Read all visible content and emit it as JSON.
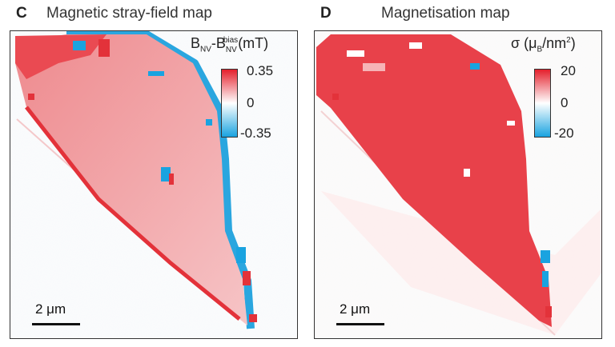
{
  "panels": [
    {
      "letter": "C",
      "title": "Magnetic stray-field map",
      "colorbar": {
        "label_main": "B",
        "label_sub1": "NV",
        "label_dash": "-B",
        "label_sup": "bias",
        "label_sub2": "NV",
        "label_unit": "(mT)",
        "max": "0.35",
        "mid": "0",
        "min": "-0.35"
      },
      "scale_bar": "2 μm"
    },
    {
      "letter": "D",
      "title": "Magnetisation map",
      "colorbar": {
        "label_symbol": "σ",
        "label_paren_open": " (μ",
        "label_sub": "B",
        "label_unit": "/nm",
        "label_sup": "2",
        "label_paren_close": ")",
        "max": "20",
        "mid": "0",
        "min": "-20"
      },
      "scale_bar": "2 μm"
    }
  ],
  "colors": {
    "positive": "#e8353b",
    "negative": "#1aa3e0",
    "neutral": "#ffffff"
  }
}
